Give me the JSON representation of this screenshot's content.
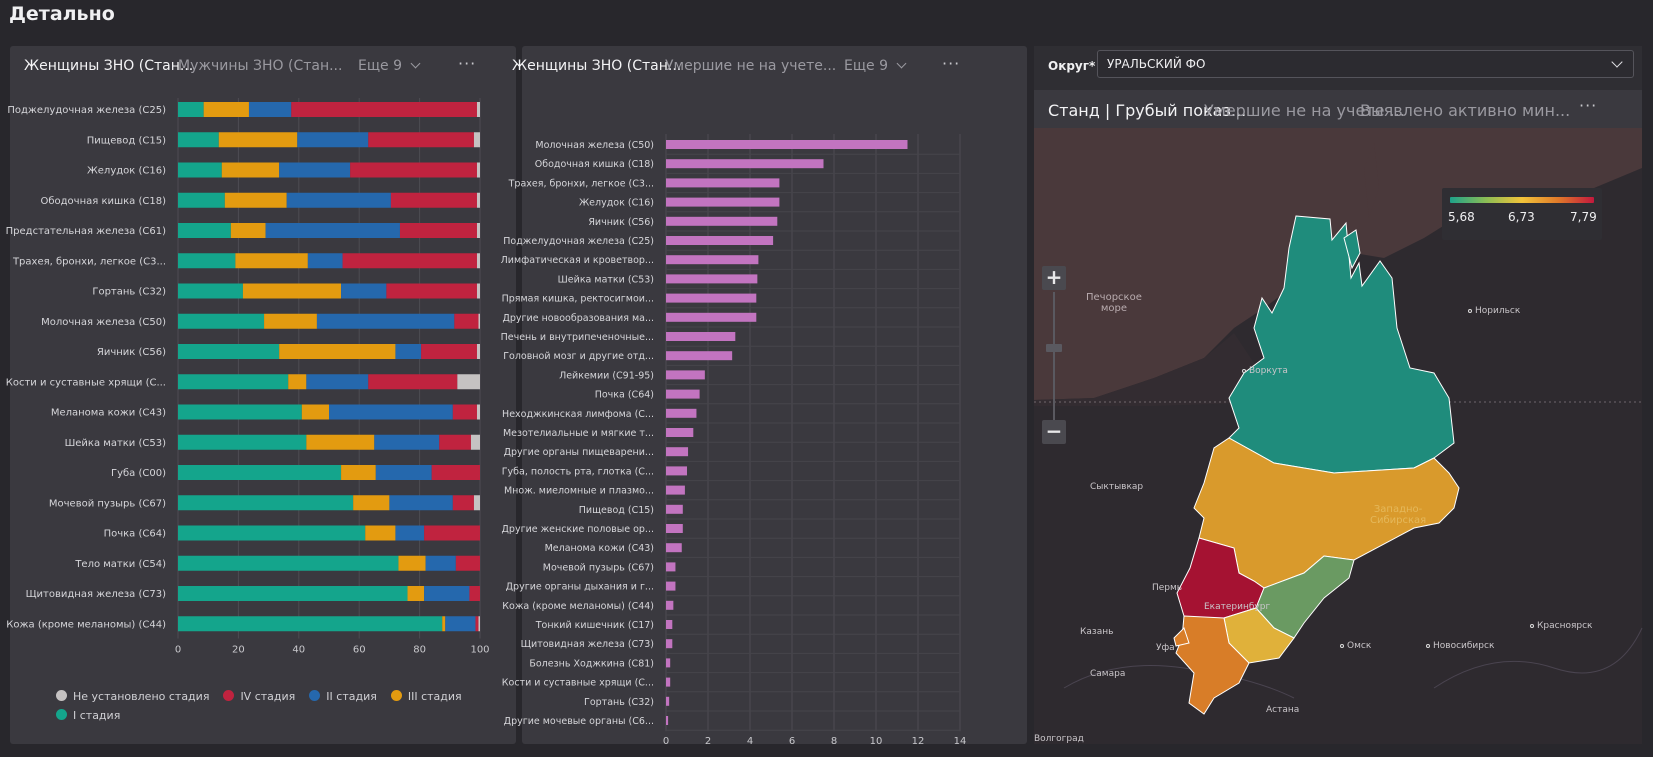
{
  "page": {
    "title": "Детально"
  },
  "panel_left": {
    "tabs": [
      "Женщины ЗНО (Стан...",
      "Мужчины ЗНО (Стан..."
    ],
    "more_label": "Еще 9",
    "menu_icon": "more-horizontal-icon"
  },
  "panel_middle": {
    "tabs": [
      "Женщины ЗНО (Стан...",
      "Умершие не на учете..."
    ],
    "more_label": "Еще 9",
    "menu_icon": "more-horizontal-icon"
  },
  "filter": {
    "label": "Округ*",
    "value": "УРАЛЬСКИЙ ФО"
  },
  "map_panel": {
    "tabs": [
      "Станд | Грубый показ...",
      "Умершие не на учете ...",
      "Выявлено активно мин..."
    ],
    "zoom_in": "+",
    "zoom_out": "−",
    "legend": {
      "min": "5,68",
      "mid": "6,73",
      "max": "7,79"
    },
    "colors": {
      "low": "#1ea28a",
      "mid": "#f2c43a",
      "high": "#c2183d"
    },
    "labels": {
      "sea": "Печорское\nморе",
      "cities": [
        "Норильск",
        "Воркута",
        "Сыктывкар",
        "Пермь",
        "Екатеринбург",
        "Казань",
        "Уфа",
        "Самара",
        "Омск",
        "Новосибирск",
        "Красноярск",
        "Астана",
        "Волгоград"
      ],
      "region": "Западно-\nСибирская"
    }
  },
  "chart_data": [
    {
      "type": "bar",
      "orientation": "horizontal",
      "stacked": true,
      "percent": true,
      "xlim": [
        0,
        100
      ],
      "xticks": [
        0,
        20,
        40,
        60,
        80,
        100
      ],
      "categories": [
        "Поджелудочная железа (C25)",
        "Пищевод (C15)",
        "Желудок (C16)",
        "Ободочная кишка (C18)",
        "Предстательная железа (C61)",
        "Трахея, бронхи, легкое (C3...",
        "Гортань (C32)",
        "Молочная железа (C50)",
        "Яичник (C56)",
        "Кости и суставные хрящи (C...",
        "Меланома кожи (C43)",
        "Шейка матки (C53)",
        "Губа (C00)",
        "Мочевой пузырь (C67)",
        "Почка (C64)",
        "Тело матки (C54)",
        "Щитовидная железа (C73)",
        "Кожа (кроме меланомы) (C44)"
      ],
      "series": [
        {
          "name": "I стадия",
          "color": "#14a58c",
          "values": [
            8.5,
            13.5,
            14.5,
            15.5,
            17.5,
            19,
            21.5,
            28.5,
            33.5,
            36.5,
            41,
            42.5,
            54,
            58,
            62,
            73,
            76,
            87.5
          ]
        },
        {
          "name": "III стадия",
          "color": "#e39b10",
          "values": [
            15,
            26,
            19,
            20.5,
            11.5,
            24,
            32.5,
            17.5,
            38.5,
            6,
            9,
            22.5,
            11.5,
            12,
            10,
            9,
            5.5,
            1
          ]
        },
        {
          "name": "II стадия",
          "color": "#2568ad",
          "values": [
            14,
            23.5,
            23.5,
            34.5,
            44.5,
            11.5,
            15,
            45.5,
            8.5,
            20.5,
            41,
            21.5,
            18.5,
            21,
            9.5,
            10,
            15,
            10
          ]
        },
        {
          "name": "IV стадия",
          "color": "#c0233f",
          "values": [
            61.5,
            35,
            42,
            28.5,
            25.5,
            44.5,
            30,
            8,
            18.5,
            29.5,
            8,
            10.5,
            16,
            7,
            18.5,
            8,
            3.5,
            1
          ]
        },
        {
          "name": "Не установлено стадия",
          "color": "#c5c2c2",
          "values": [
            1,
            2,
            1,
            1,
            1,
            1,
            1,
            0.5,
            1,
            7.5,
            1,
            3,
            0,
            2,
            0,
            0,
            0,
            0.5
          ]
        }
      ],
      "legend_order": [
        "Не установлено стадия",
        "IV стадия",
        "II стадия",
        "III стадия",
        "I стадия"
      ]
    },
    {
      "type": "bar",
      "orientation": "horizontal",
      "xlim": [
        0,
        14
      ],
      "xticks": [
        0,
        2,
        4,
        6,
        8,
        10,
        12,
        14
      ],
      "color": "#c274c0",
      "categories": [
        "Молочная железа (C50)",
        "Ободочная кишка (C18)",
        "Трахея, бронхи, легкое (C3...",
        "Желудок (C16)",
        "Яичник (C56)",
        "Поджелудочная железа (C25)",
        "Лимфатическая и кроветвор...",
        "Шейка матки (C53)",
        "Прямая кишка, ректосигмои...",
        "Другие новообразования ма...",
        "Печень и внутрипеченочные...",
        "Головной мозг и другие отд...",
        "Лейкемии (C91-95)",
        "Почка (C64)",
        "Неходжкинская лимфома (C...",
        "Мезотелиальные и мягкие т...",
        "Другие органы пищеварени...",
        "Губа, полость рта, глотка (C...",
        "Множ. миеломные и плазмо...",
        "Пищевод (C15)",
        "Другие женские половые ор...",
        "Меланома кожи (C43)",
        "Мочевой пузырь (C67)",
        "Другие органы дыхания и г...",
        "Кожа (кроме меланомы) (C44)",
        "Тонкий кишечник (C17)",
        "Щитовидная железа (C73)",
        "Болезнь Ходжкина (C81)",
        "Кости и суставные хрящи (C...",
        "Гортань (C32)",
        "Другие мочевые органы (C6..."
      ],
      "values": [
        11.5,
        7.5,
        5.4,
        5.4,
        5.3,
        5.1,
        4.4,
        4.35,
        4.3,
        4.3,
        3.3,
        3.15,
        1.85,
        1.6,
        1.45,
        1.3,
        1.05,
        1.0,
        0.9,
        0.8,
        0.8,
        0.75,
        0.45,
        0.45,
        0.35,
        0.3,
        0.3,
        0.2,
        0.2,
        0.15,
        0.1
      ]
    }
  ]
}
